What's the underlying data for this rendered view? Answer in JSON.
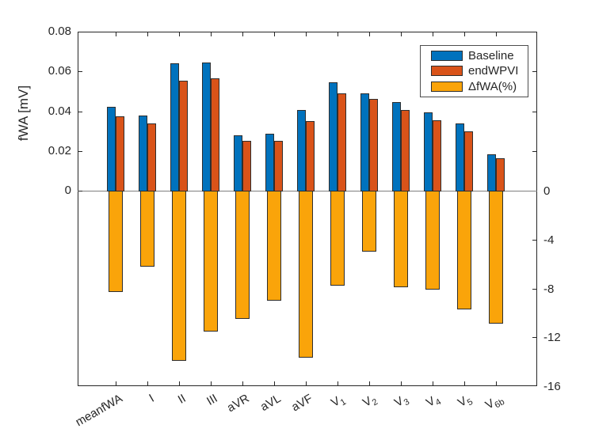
{
  "figure": {
    "ylabel_left": "fWA [mV]",
    "background_color": "#ffffff",
    "axis_color": "#262626"
  },
  "legend": {
    "position": "upper-right",
    "items": [
      {
        "label": "Baseline",
        "color": "#0072BD"
      },
      {
        "label": "endWPVI",
        "color": "#D95319"
      },
      {
        "label": "ΔfWA(%)",
        "color": "#FAA40A"
      }
    ]
  },
  "chart_data": {
    "type": "bar",
    "title": "",
    "xlabel": "",
    "ylabel_left": "fWA [mV]",
    "ylabel_right": "",
    "grid": false,
    "zero_line": true,
    "legend_position": "upper-right",
    "categories": [
      "meanfWA",
      "I",
      "II",
      "III",
      "aVR",
      "aVL",
      "aVF",
      "V1",
      "V2",
      "V3",
      "V4",
      "V5",
      "V6b"
    ],
    "categories_rich": [
      {
        "main": "meanfWA",
        "sub": ""
      },
      {
        "main": "I",
        "sub": ""
      },
      {
        "main": "II",
        "sub": ""
      },
      {
        "main": "III",
        "sub": ""
      },
      {
        "main": "aVR",
        "sub": ""
      },
      {
        "main": "aVL",
        "sub": ""
      },
      {
        "main": "aVF",
        "sub": ""
      },
      {
        "main": "V",
        "sub": "1"
      },
      {
        "main": "V",
        "sub": "2"
      },
      {
        "main": "V",
        "sub": "3"
      },
      {
        "main": "V",
        "sub": "4"
      },
      {
        "main": "V",
        "sub": "5"
      },
      {
        "main": "V",
        "sub": "6b"
      }
    ],
    "series": [
      {
        "name": "Baseline",
        "axis": "left",
        "color": "#0072BD",
        "values": [
          0.042,
          0.038,
          0.064,
          0.0645,
          0.028,
          0.0285,
          0.0405,
          0.0545,
          0.049,
          0.0445,
          0.0395,
          0.034,
          0.0185
        ]
      },
      {
        "name": "endWPVI",
        "axis": "left",
        "color": "#D95319",
        "values": [
          0.0375,
          0.034,
          0.0555,
          0.0565,
          0.025,
          0.025,
          0.035,
          0.049,
          0.046,
          0.0405,
          0.0355,
          0.03,
          0.0165
        ]
      },
      {
        "name": "ΔfWA(%)",
        "axis": "right",
        "color": "#FAA40A",
        "values": [
          -8.3,
          -6.2,
          -13.9,
          -11.5,
          -10.5,
          -9.0,
          -13.7,
          -7.8,
          -5.0,
          -7.9,
          -8.1,
          -9.7,
          -10.9
        ]
      }
    ],
    "left_axis": {
      "label": "fWA [mV]",
      "tick_values": [
        0,
        0.02,
        0.04,
        0.06,
        0.08
      ],
      "tick_labels": [
        "0",
        "0.02",
        "0.04",
        "0.06",
        "0.08"
      ],
      "max": 0.08
    },
    "right_axis": {
      "label": "",
      "tick_values": [
        0,
        -4,
        -8,
        -12,
        -16
      ],
      "tick_labels": [
        "0",
        "-4",
        "-8",
        "-12",
        "-16"
      ],
      "min": -16
    }
  }
}
